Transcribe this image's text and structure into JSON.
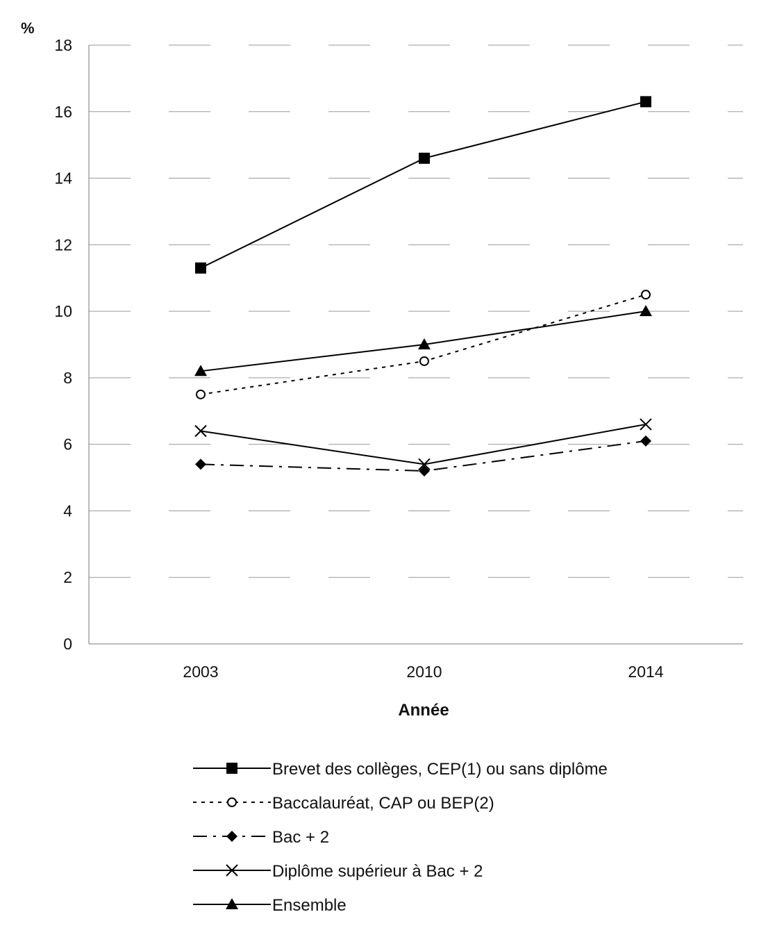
{
  "chart_data": {
    "type": "line",
    "title": "",
    "xlabel": "Année",
    "ylabel": "%",
    "x": [
      "2003",
      "2010",
      "2014"
    ],
    "ylim": [
      0,
      18
    ],
    "yticks": [
      0,
      2,
      4,
      6,
      8,
      10,
      12,
      14,
      16,
      18
    ],
    "grid": true,
    "legend_position": "bottom",
    "series": [
      {
        "name": "Brevet des collèges, CEP(1) ou sans diplôme",
        "values": [
          11.3,
          14.6,
          16.3
        ],
        "marker": "square",
        "line": "solid"
      },
      {
        "name": "Baccalauréat, CAP ou BEP(2)",
        "values": [
          7.5,
          8.5,
          10.5
        ],
        "marker": "circle-open",
        "line": "dotted"
      },
      {
        "name": "Bac + 2",
        "values": [
          5.4,
          5.2,
          6.1
        ],
        "marker": "diamond",
        "line": "dashdot"
      },
      {
        "name": "Diplôme supérieur à Bac + 2",
        "values": [
          6.4,
          5.4,
          6.6
        ],
        "marker": "x",
        "line": "solid"
      },
      {
        "name": "Ensemble",
        "values": [
          8.2,
          9.0,
          10.0
        ],
        "marker": "triangle",
        "line": "solid"
      }
    ]
  }
}
